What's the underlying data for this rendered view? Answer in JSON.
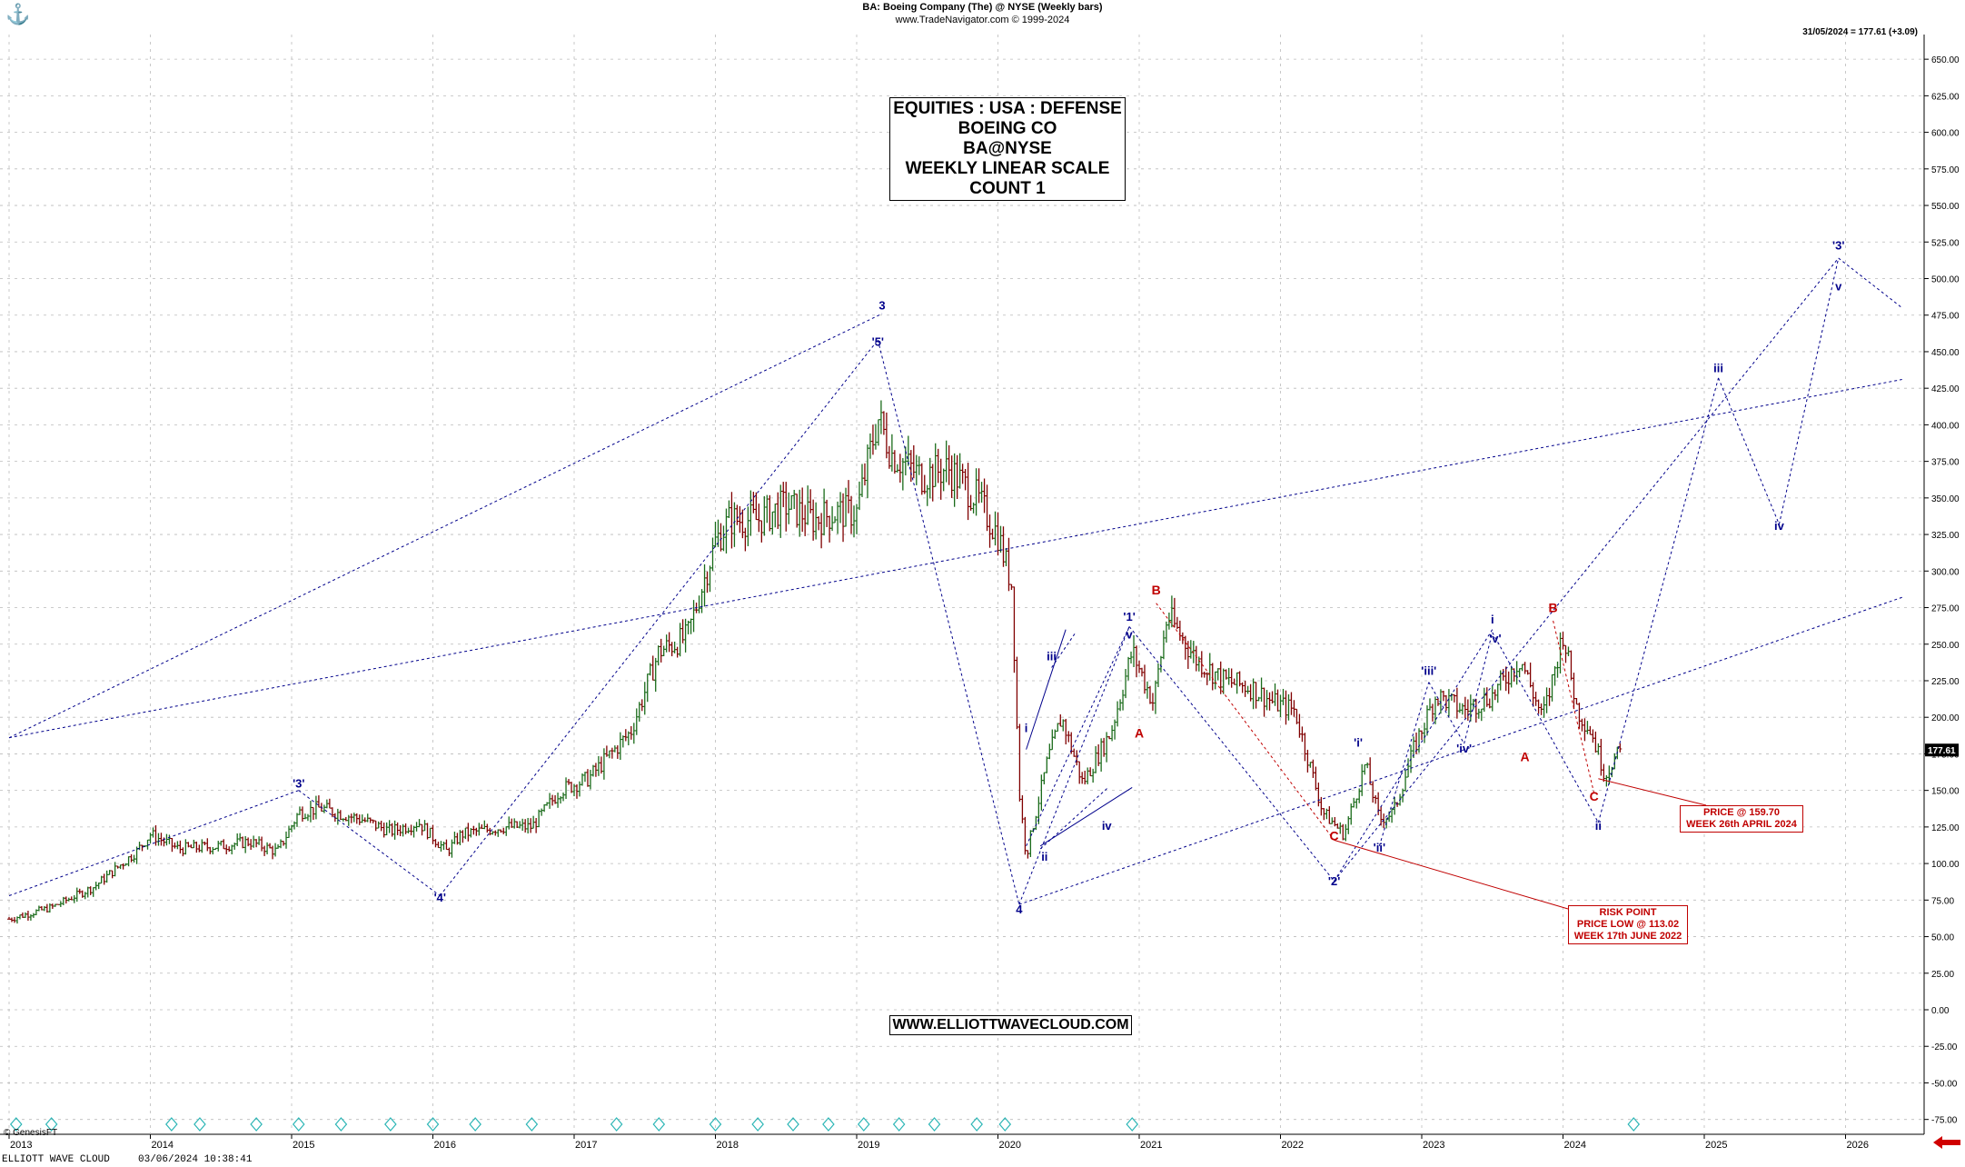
{
  "header": {
    "title": "BA:  Boeing Company (The) @ NYSE  (Weekly bars)",
    "copyright": "www.TradeNavigator.com © 1999-2024",
    "last_price_note": "31/05/2024 = 177.61 (+3.09)"
  },
  "info_box": {
    "line1": "EQUITIES : USA : DEFENSE",
    "line2": "BOEING CO",
    "line3": "BA@NYSE",
    "line4": "WEEKLY LINEAR SCALE",
    "line5": "COUNT 1"
  },
  "website": "WWW.ELLIOTTWAVECLOUD.COM",
  "risk_box": {
    "line1": "RISK POINT",
    "line2": "PRICE LOW @ 113.02",
    "line3": "WEEK 17th JUNE 2022"
  },
  "price_box": {
    "line1": "PRICE @ 159.70",
    "line2": "WEEK 26th APRIL 2024"
  },
  "footer": {
    "vendor": "© GenesisFT",
    "brand": "ELLIOTT WAVE CLOUD",
    "timestamp": "03/06/2024 10:38:41"
  },
  "colors": {
    "wave_blue": "#00008b",
    "wave_red": "#c00000",
    "grid": "#bbbbbb",
    "up_bar": "#1a6b1a",
    "down_bar": "#800000",
    "marker": "#2ab5b5"
  },
  "chart_data": {
    "type": "line",
    "title": "BA:  Boeing Company (The) @ NYSE  (Weekly bars)",
    "x_axis": {
      "tick_labels": [
        "2013",
        "2014",
        "2015",
        "2016",
        "2017",
        "2018",
        "2019",
        "2020",
        "2021",
        "2022",
        "2023",
        "2024",
        "2025",
        "2026"
      ],
      "range": [
        2013.0,
        2026.4
      ]
    },
    "y_axis": {
      "tick_labels": [
        "650.00",
        "625.00",
        "600.00",
        "575.00",
        "550.00",
        "525.00",
        "500.00",
        "475.00",
        "450.00",
        "425.00",
        "400.00",
        "375.00",
        "350.00",
        "325.00",
        "300.00",
        "275.00",
        "250.00",
        "225.00",
        "200.00",
        "175.00",
        "150.00",
        "125.00",
        "100.00",
        "75.00",
        "50.00",
        "25.00",
        "0.00",
        "-25.00",
        "-50.00",
        "-75.00"
      ],
      "range": [
        -85,
        662
      ]
    },
    "grid": true,
    "last_price": "177.61",
    "series": [
      {
        "values_note": "weekly close path",
        "points": [
          [
            2013.0,
            62
          ],
          [
            2013.3,
            70
          ],
          [
            2013.6,
            84
          ],
          [
            2013.9,
            108
          ],
          [
            2014.0,
            120
          ],
          [
            2014.2,
            110
          ],
          [
            2014.5,
            112
          ],
          [
            2014.7,
            115
          ],
          [
            2014.9,
            108
          ],
          [
            2015.05,
            135
          ],
          [
            2015.2,
            138
          ],
          [
            2015.5,
            130
          ],
          [
            2015.7,
            122
          ],
          [
            2015.9,
            128
          ],
          [
            2016.1,
            108
          ],
          [
            2016.2,
            120
          ],
          [
            2016.5,
            125
          ],
          [
            2016.7,
            125
          ],
          [
            2016.9,
            150
          ],
          [
            2017.1,
            158
          ],
          [
            2017.4,
            190
          ],
          [
            2017.6,
            245
          ],
          [
            2017.8,
            255
          ],
          [
            2018.0,
            320
          ],
          [
            2018.1,
            335
          ],
          [
            2018.3,
            335
          ],
          [
            2018.5,
            345
          ],
          [
            2018.7,
            335
          ],
          [
            2018.85,
            340
          ],
          [
            2019.0,
            340
          ],
          [
            2019.15,
            405
          ],
          [
            2019.25,
            380
          ],
          [
            2019.45,
            365
          ],
          [
            2019.65,
            370
          ],
          [
            2019.85,
            350
          ],
          [
            2020.0,
            325
          ],
          [
            2020.1,
            290
          ],
          [
            2020.15,
            150
          ],
          [
            2020.2,
            105
          ],
          [
            2020.35,
            170
          ],
          [
            2020.45,
            200
          ],
          [
            2020.6,
            155
          ],
          [
            2020.8,
            190
          ],
          [
            2020.95,
            245
          ],
          [
            2021.1,
            210
          ],
          [
            2021.2,
            270
          ],
          [
            2021.4,
            240
          ],
          [
            2021.6,
            225
          ],
          [
            2021.8,
            220
          ],
          [
            2021.95,
            210
          ],
          [
            2022.1,
            205
          ],
          [
            2022.3,
            135
          ],
          [
            2022.45,
            120
          ],
          [
            2022.6,
            168
          ],
          [
            2022.7,
            130
          ],
          [
            2022.8,
            135
          ],
          [
            2022.95,
            180
          ],
          [
            2023.1,
            215
          ],
          [
            2023.3,
            205
          ],
          [
            2023.5,
            215
          ],
          [
            2023.7,
            240
          ],
          [
            2023.85,
            200
          ],
          [
            2023.9,
            215
          ],
          [
            2024.0,
            258
          ],
          [
            2024.1,
            205
          ],
          [
            2024.2,
            190
          ],
          [
            2024.3,
            160
          ],
          [
            2024.35,
            170
          ],
          [
            2024.42,
            177.61
          ]
        ]
      }
    ],
    "annotations": {
      "blue_waves": [
        {
          "label": "'3'",
          "x": 2015.05,
          "y": 152
        },
        {
          "label": "'4'",
          "x": 2016.05,
          "y": 74
        },
        {
          "label": "3",
          "x": 2019.18,
          "y": 479
        },
        {
          "label": "'5'",
          "x": 2019.15,
          "y": 454
        },
        {
          "label": "4",
          "x": 2020.15,
          "y": 66
        },
        {
          "label": "i",
          "x": 2020.2,
          "y": 190
        },
        {
          "label": "ii",
          "x": 2020.33,
          "y": 102
        },
        {
          "label": "iii",
          "x": 2020.38,
          "y": 239
        },
        {
          "label": "iv",
          "x": 2020.77,
          "y": 123
        },
        {
          "label": "'1'",
          "x": 2020.93,
          "y": 266
        },
        {
          "label": "v",
          "x": 2020.93,
          "y": 254
        },
        {
          "label": "'2'",
          "x": 2022.38,
          "y": 85
        },
        {
          "label": "'i'",
          "x": 2022.55,
          "y": 180
        },
        {
          "label": "'ii'",
          "x": 2022.7,
          "y": 108
        },
        {
          "label": "'iii'",
          "x": 2023.05,
          "y": 229
        },
        {
          "label": "'iv'",
          "x": 2023.3,
          "y": 176
        },
        {
          "label": "i",
          "x": 2023.5,
          "y": 264
        },
        {
          "label": "'v'",
          "x": 2023.52,
          "y": 251
        },
        {
          "label": "ii",
          "x": 2024.25,
          "y": 123
        },
        {
          "label": "iii",
          "x": 2025.1,
          "y": 436
        },
        {
          "label": "iv",
          "x": 2025.53,
          "y": 328
        },
        {
          "label": "'3'",
          "x": 2025.95,
          "y": 520
        },
        {
          "label": "v",
          "x": 2025.95,
          "y": 492
        }
      ],
      "red_waves": [
        {
          "label": "B",
          "x": 2021.12,
          "y": 284
        },
        {
          "label": "A",
          "x": 2021.0,
          "y": 186
        },
        {
          "label": "C",
          "x": 2022.38,
          "y": 116
        },
        {
          "label": "A",
          "x": 2023.73,
          "y": 170
        },
        {
          "label": "B",
          "x": 2023.93,
          "y": 272
        },
        {
          "label": "C",
          "x": 2024.22,
          "y": 143
        }
      ]
    }
  }
}
